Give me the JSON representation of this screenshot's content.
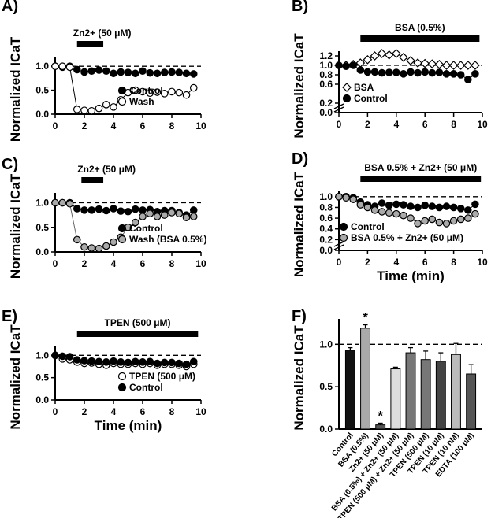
{
  "chart_data": [
    {
      "panel": "A)",
      "type": "scatter",
      "bar_label": "Zn2+ (50 μM)",
      "ylabel": "Normalized ICaT",
      "xlabel": "",
      "xlim": [
        0,
        10
      ],
      "ylim": [
        0,
        1.2
      ],
      "xticks": [
        "0",
        "2",
        "4",
        "6",
        "8",
        "10"
      ],
      "yticks": [
        "0.0",
        "0.5",
        "1.0"
      ],
      "reference_line": 1.0,
      "bar_x": [
        1.5,
        3.3
      ],
      "legend_position": "bottom-right",
      "series": [
        {
          "name": "Control",
          "marker": "filled-black",
          "x": [
            0,
            0.5,
            1,
            1.5,
            2,
            2.5,
            3,
            3.5,
            4,
            4.5,
            5,
            5.5,
            6,
            6.5,
            7,
            7.5,
            8,
            8.5,
            9,
            9.5
          ],
          "y": [
            1.0,
            0.98,
            1.0,
            0.93,
            0.88,
            0.9,
            0.92,
            0.9,
            0.85,
            0.88,
            0.87,
            0.85,
            0.9,
            0.86,
            0.85,
            0.87,
            0.88,
            0.87,
            0.85,
            0.84
          ]
        },
        {
          "name": "Wash",
          "marker": "open",
          "x": [
            0,
            0.5,
            1,
            1.5,
            2,
            2.5,
            3,
            3.5,
            4,
            4.5,
            5,
            5.5,
            6,
            6.5,
            7,
            7.5,
            8,
            8.5,
            9,
            9.5
          ],
          "y": [
            1.0,
            1.0,
            0.98,
            0.1,
            0.08,
            0.07,
            0.12,
            0.2,
            0.15,
            0.3,
            0.45,
            0.5,
            0.47,
            0.44,
            0.46,
            0.43,
            0.47,
            0.45,
            0.4,
            0.55
          ]
        }
      ]
    },
    {
      "panel": "B)",
      "type": "scatter",
      "bar_label": "BSA (0.5%)",
      "ylabel": "Normalized ICaT",
      "xlabel": "",
      "xlim": [
        0,
        10
      ],
      "ylim": [
        0,
        1.3
      ],
      "xticks": [
        "0",
        "2",
        "4",
        "6",
        "8",
        "10"
      ],
      "yticks": [
        "0.0",
        "0.2",
        "0.6",
        "0.8",
        "1.0",
        "1.2"
      ],
      "axis_break": true,
      "reference_line": 1.0,
      "bar_x": [
        1.5,
        9.8
      ],
      "legend_position": "bottom-left",
      "series": [
        {
          "name": "BSA",
          "marker": "open-diamond",
          "x": [
            0,
            0.5,
            1,
            1.5,
            2,
            2.5,
            3,
            3.5,
            4,
            4.5,
            5,
            5.5,
            6,
            6.5,
            7,
            7.5,
            8,
            8.5,
            9,
            9.5
          ],
          "y": [
            1.0,
            1.0,
            1.02,
            1.05,
            1.12,
            1.2,
            1.25,
            1.22,
            1.25,
            1.17,
            1.1,
            1.05,
            1.04,
            1.03,
            1.02,
            1.0,
            1.0,
            1.0,
            1.0,
            1.0
          ]
        },
        {
          "name": "Control",
          "marker": "filled-black",
          "x": [
            0,
            0.5,
            1,
            1.5,
            2,
            2.5,
            3,
            3.5,
            4,
            4.5,
            5,
            5.5,
            6,
            6.5,
            7,
            7.5,
            8,
            8.5,
            9,
            9.5
          ],
          "y": [
            1.0,
            0.98,
            1.0,
            0.9,
            0.86,
            0.86,
            0.84,
            0.85,
            0.85,
            0.82,
            0.86,
            0.84,
            0.86,
            0.84,
            0.85,
            0.82,
            0.82,
            0.8,
            0.7,
            0.82
          ]
        }
      ]
    },
    {
      "panel": "C)",
      "type": "scatter",
      "bar_label": "Zn2+ (50 μM)",
      "ylabel": "Normalized ICaT",
      "xlabel": "",
      "xlim": [
        0,
        10
      ],
      "ylim": [
        0,
        1.2
      ],
      "xticks": [
        "0",
        "2",
        "4",
        "6",
        "8",
        "10"
      ],
      "yticks": [
        "0.0",
        "0.5",
        "1.0"
      ],
      "reference_line": 1.0,
      "bar_x": [
        1.8,
        3.3
      ],
      "legend_position": "bottom-right",
      "series": [
        {
          "name": "Control",
          "marker": "filled-black",
          "x": [
            0,
            0.5,
            1,
            1.5,
            2,
            2.5,
            3,
            3.5,
            4,
            4.5,
            5,
            5.5,
            6,
            6.5,
            7,
            7.5,
            8,
            8.5,
            9,
            9.5
          ],
          "y": [
            1.0,
            1.0,
            1.0,
            0.88,
            0.85,
            0.85,
            0.87,
            0.84,
            0.88,
            0.83,
            0.82,
            0.87,
            0.85,
            0.86,
            0.82,
            0.84,
            0.84,
            0.8,
            0.75,
            0.85
          ]
        },
        {
          "name": "Wash (BSA 0.5%)",
          "marker": "filled-grey",
          "x": [
            0,
            0.5,
            1,
            1.5,
            2,
            2.5,
            3,
            3.5,
            4,
            4.5,
            5,
            5.5,
            6,
            6.5,
            7,
            7.5,
            8,
            8.5,
            9,
            9.5
          ],
          "y": [
            1.0,
            1.0,
            0.98,
            0.25,
            0.1,
            0.08,
            0.07,
            0.12,
            0.2,
            0.3,
            0.5,
            0.6,
            0.72,
            0.78,
            0.72,
            0.75,
            0.8,
            0.78,
            0.7,
            0.72
          ]
        }
      ]
    },
    {
      "panel": "D)",
      "type": "scatter",
      "bar_label": "BSA 0.5% + Zn2+ (50 μM)",
      "ylabel": "Normalized ICaT",
      "xlabel": "Time (min)",
      "xlim": [
        0,
        10
      ],
      "ylim": [
        0,
        1.1
      ],
      "xticks": [
        "0",
        "2",
        "4",
        "6",
        "8",
        "10"
      ],
      "yticks": [
        "0.0",
        "0.2",
        "0.4",
        "0.6",
        "0.8",
        "1.0"
      ],
      "axis_break": true,
      "reference_line": 1.0,
      "bar_x": [
        1.5,
        9.9
      ],
      "legend_position": "bottom-left",
      "series": [
        {
          "name": "Control",
          "marker": "filled-black",
          "x": [
            0,
            0.5,
            1,
            1.5,
            2,
            2.5,
            3,
            3.5,
            4,
            4.5,
            5,
            5.5,
            6,
            6.5,
            7,
            7.5,
            8,
            8.5,
            9,
            9.5
          ],
          "y": [
            1.0,
            1.0,
            0.98,
            0.9,
            0.85,
            0.82,
            0.88,
            0.84,
            0.86,
            0.85,
            0.82,
            0.8,
            0.84,
            0.82,
            0.8,
            0.82,
            0.8,
            0.78,
            0.75,
            0.86
          ]
        },
        {
          "name": "BSA 0.5% + Zn2+ (50 μM)",
          "marker": "filled-grey",
          "x": [
            0,
            0.5,
            1,
            1.5,
            2,
            2.5,
            3,
            3.5,
            4,
            4.5,
            5,
            5.5,
            6,
            6.5,
            7,
            7.5,
            8,
            8.5,
            9,
            9.5
          ],
          "y": [
            1.0,
            0.98,
            0.95,
            0.85,
            0.8,
            0.75,
            0.72,
            0.7,
            0.68,
            0.65,
            0.6,
            0.5,
            0.55,
            0.58,
            0.52,
            0.5,
            0.55,
            0.58,
            0.6,
            0.68
          ]
        }
      ]
    },
    {
      "panel": "E)",
      "type": "scatter",
      "bar_label": "TPEN (500 μM)",
      "ylabel": "Normalized ICaT",
      "xlabel": "Time (min)",
      "xlim": [
        0,
        10
      ],
      "ylim": [
        0,
        1.2
      ],
      "xticks": [
        "0",
        "2",
        "4",
        "6",
        "8",
        "10"
      ],
      "yticks": [
        "0.0",
        "0.5",
        "1.0"
      ],
      "reference_line": 1.0,
      "bar_x": [
        1.5,
        9.8
      ],
      "legend_position": "bottom-right",
      "series": [
        {
          "name": "TPEN (500 μM)",
          "marker": "open",
          "x": [
            0,
            0.5,
            1,
            1.5,
            2,
            2.5,
            3,
            3.5,
            4,
            4.5,
            5,
            5.5,
            6,
            6.5,
            7,
            7.5,
            8,
            8.5,
            9,
            9.5
          ],
          "y": [
            1.0,
            0.92,
            0.9,
            0.85,
            0.82,
            0.83,
            0.8,
            0.78,
            0.82,
            0.8,
            0.8,
            0.82,
            0.8,
            0.82,
            0.78,
            0.8,
            0.8,
            0.78,
            0.75,
            0.8
          ]
        },
        {
          "name": "Control",
          "marker": "filled-black",
          "x": [
            0,
            0.5,
            1,
            1.5,
            2,
            2.5,
            3,
            3.5,
            4,
            4.5,
            5,
            5.5,
            6,
            6.5,
            7,
            7.5,
            8,
            8.5,
            9,
            9.5
          ],
          "y": [
            1.0,
            0.98,
            0.97,
            0.9,
            0.88,
            0.87,
            0.86,
            0.85,
            0.87,
            0.85,
            0.84,
            0.86,
            0.85,
            0.86,
            0.82,
            0.84,
            0.84,
            0.82,
            0.8,
            0.86
          ]
        }
      ]
    },
    {
      "panel": "F)",
      "type": "bar",
      "ylabel": "Normalized ICaT",
      "ylim": [
        0,
        1.3
      ],
      "yticks": [
        "0.0",
        "0.5",
        "1.0"
      ],
      "reference_line": 1.0,
      "categories": [
        "Control",
        "BSA (0.5%)",
        "Zn2+ (50 μM)",
        "BSA (0.5%) + Zn2+ (50 μM)",
        "TPEN (500 μM) + Zn2+ (50 μM)",
        "TPEN (500 μM)",
        "TPEN (10 μM)",
        "TPEN (10 nM)",
        "EDTA (100 μM)"
      ],
      "values": [
        0.93,
        1.19,
        0.05,
        0.71,
        0.9,
        0.82,
        0.8,
        0.88,
        0.65
      ],
      "errors": [
        0.03,
        0.04,
        0.02,
        0.02,
        0.06,
        0.1,
        0.1,
        0.13,
        0.11
      ],
      "significance": [
        "",
        "*",
        "*",
        "",
        "",
        "",
        "",
        "",
        ""
      ],
      "bar_colors": [
        "#111111",
        "#aaaaaa",
        "#555555",
        "#dddddd",
        "#777777",
        "#777777",
        "#444444",
        "#bbbbbb",
        "#555555"
      ]
    }
  ]
}
